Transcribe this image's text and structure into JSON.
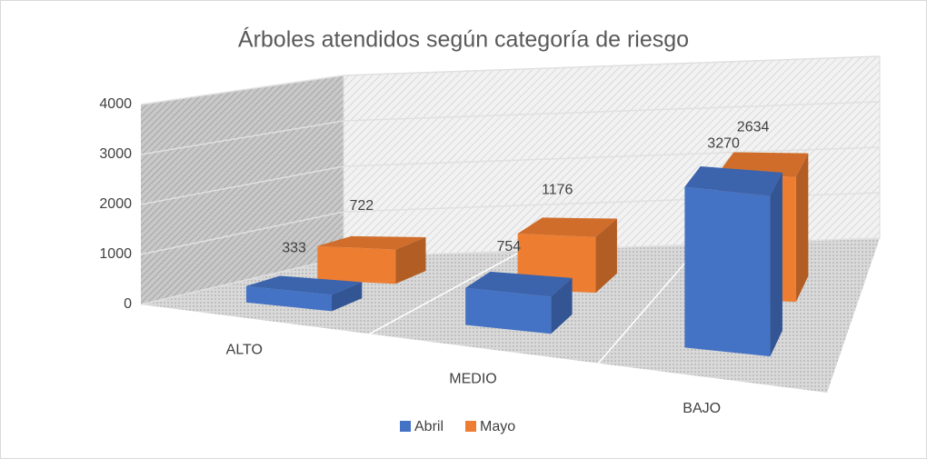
{
  "chart_data": {
    "type": "bar3d",
    "title": "Árboles atendidos según categoría de riesgo",
    "categories": [
      "ALTO",
      "MEDIO",
      "BAJO"
    ],
    "series": [
      {
        "name": "Abril",
        "color": "#4472c4",
        "values": [
          333,
          754,
          3270
        ]
      },
      {
        "name": "Mayo",
        "color": "#ed7d31",
        "values": [
          722,
          1176,
          2634
        ]
      }
    ],
    "ylim": [
      0,
      4000
    ],
    "yticks": [
      0,
      1000,
      2000,
      3000,
      4000
    ],
    "grid": true,
    "legend": "bottom"
  }
}
